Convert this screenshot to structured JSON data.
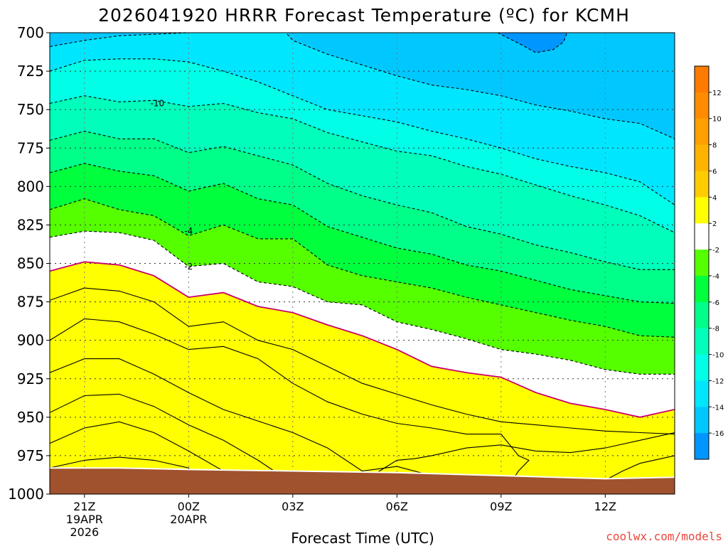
{
  "chart_data": {
    "type": "heatmap",
    "title": "2026041920 HRRR Forecast Temperature (ºC) for KCMH",
    "xlabel": "Forecast Time (UTC)",
    "ylabel": "",
    "yticks": [
      "700",
      "725",
      "750",
      "775",
      "800",
      "825",
      "850",
      "875",
      "900",
      "925",
      "950",
      "975",
      "1000"
    ],
    "ylim": [
      1000,
      700
    ],
    "xticks": [
      {
        "hour": 0,
        "lines": [
          "21Z",
          "19APR",
          "2026"
        ]
      },
      {
        "hour": 3,
        "lines": [
          "00Z",
          "20APR"
        ]
      },
      {
        "hour": 6,
        "lines": [
          "03Z"
        ]
      },
      {
        "hour": 9,
        "lines": [
          "06Z"
        ]
      },
      {
        "hour": 12,
        "lines": [
          "09Z"
        ]
      },
      {
        "hour": 15,
        "lines": [
          "12Z"
        ]
      }
    ],
    "xlim": [
      -1,
      17
    ],
    "grid": true,
    "contour_interval": 2,
    "contour_labels": [
      {
        "value": "-10",
        "hour": 2.1,
        "p": 746
      },
      {
        "value": "-4",
        "hour": 3.0,
        "p": 829
      },
      {
        "value": "-2",
        "hour": 3.0,
        "p": 852
      }
    ],
    "colorbar": {
      "levels": [
        "12",
        "10",
        "8",
        "6",
        "4",
        "2",
        "-2",
        "-4",
        "-6",
        "-8",
        "-10",
        "-12",
        "-14",
        "-16"
      ],
      "colors": [
        "#ff7a00",
        "#ff8c00",
        "#ff9f00",
        "#ffb300",
        "#ffcc00",
        "#ffff00",
        "#ffffff",
        "#55ff00",
        "#00ff3c",
        "#00ff88",
        "#00ffbb",
        "#00ffe6",
        "#00e6ff",
        "#00c8ff",
        "#0096ff"
      ]
    },
    "isotherms": [
      {
        "value": 6,
        "style": "solid",
        "points": [
          [
            -1,
            983
          ],
          [
            0,
            978
          ],
          [
            1,
            976
          ],
          [
            2,
            978
          ],
          [
            3,
            983
          ],
          [
            3.2,
            992
          ]
        ]
      },
      {
        "value": 4,
        "style": "solid",
        "points": [
          [
            -1,
            967
          ],
          [
            0,
            957
          ],
          [
            1,
            953
          ],
          [
            2,
            960
          ],
          [
            3,
            972
          ],
          [
            4,
            985
          ],
          [
            4.2,
            992
          ]
        ]
      },
      {
        "value": 2,
        "style": "solid",
        "points": [
          [
            -1,
            947
          ],
          [
            0,
            936
          ],
          [
            1,
            935
          ],
          [
            2,
            943
          ],
          [
            3,
            955
          ],
          [
            4,
            965
          ],
          [
            5,
            978
          ],
          [
            5.8,
            990
          ]
        ]
      },
      {
        "value": 0,
        "style": "solid",
        "points": [
          [
            -1,
            921
          ],
          [
            0,
            912
          ],
          [
            1,
            912
          ],
          [
            2,
            922
          ],
          [
            3,
            934
          ],
          [
            4,
            945
          ],
          [
            6,
            960
          ],
          [
            7,
            970
          ],
          [
            8,
            985
          ],
          [
            9,
            982
          ],
          [
            10,
            988
          ],
          [
            10.5,
            993
          ]
        ]
      },
      {
        "value": 0,
        "style": "solid",
        "points": [
          [
            8,
            995
          ],
          [
            8.5,
            985
          ],
          [
            9,
            978
          ],
          [
            9.5,
            977
          ],
          [
            10,
            975
          ],
          [
            11,
            970
          ],
          [
            12,
            968
          ],
          [
            13,
            972
          ],
          [
            14,
            973
          ],
          [
            15,
            970
          ],
          [
            16,
            965
          ],
          [
            17,
            960
          ]
        ]
      },
      {
        "value": 0,
        "style": "solid",
        "points": [
          [
            -1,
            900
          ],
          [
            0,
            886
          ],
          [
            1,
            888
          ],
          [
            2,
            896
          ],
          [
            3,
            906
          ],
          [
            4,
            904
          ],
          [
            5,
            912
          ],
          [
            6,
            928
          ],
          [
            7,
            940
          ],
          [
            8,
            948
          ],
          [
            9,
            954
          ],
          [
            10,
            957
          ],
          [
            11,
            961
          ],
          [
            12,
            961
          ],
          [
            12.5,
            975
          ],
          [
            12.8,
            978
          ],
          [
            12.5,
            985
          ],
          [
            12.3,
            992
          ]
        ]
      },
      {
        "value": 0,
        "style": "solid",
        "points": [
          [
            15,
            991
          ],
          [
            15.5,
            985
          ],
          [
            16,
            980
          ],
          [
            17,
            975
          ]
        ]
      },
      {
        "value": 0,
        "style": "solid",
        "points": [
          [
            -1,
            874
          ],
          [
            0,
            866
          ],
          [
            1,
            868
          ],
          [
            2,
            875
          ],
          [
            3,
            891
          ],
          [
            4,
            888
          ],
          [
            5,
            900
          ],
          [
            6,
            906
          ],
          [
            7,
            917
          ],
          [
            8,
            928
          ],
          [
            9,
            935
          ],
          [
            10,
            942
          ],
          [
            11,
            948
          ],
          [
            12,
            953
          ],
          [
            13,
            955
          ],
          [
            14,
            957
          ],
          [
            15,
            959
          ],
          [
            16,
            960
          ],
          [
            17,
            961
          ]
        ]
      },
      {
        "value": 0,
        "style": "magenta",
        "points": [
          [
            -1,
            855
          ],
          [
            0,
            849
          ],
          [
            1,
            851
          ],
          [
            2,
            858
          ],
          [
            3,
            872
          ],
          [
            4,
            869
          ],
          [
            5,
            878
          ],
          [
            6,
            882
          ],
          [
            7,
            890
          ],
          [
            8,
            897
          ],
          [
            9,
            906
          ],
          [
            10,
            917
          ],
          [
            11,
            921
          ],
          [
            12,
            924
          ],
          [
            13,
            934
          ],
          [
            14,
            941
          ],
          [
            15,
            945
          ],
          [
            16,
            950
          ],
          [
            17,
            945
          ]
        ]
      },
      {
        "value": -2,
        "style": "dashed",
        "points": [
          [
            -1,
            833
          ],
          [
            0,
            829
          ],
          [
            1,
            830
          ],
          [
            2,
            835
          ],
          [
            3,
            852
          ],
          [
            4,
            850
          ],
          [
            5,
            862
          ],
          [
            6,
            865
          ],
          [
            7,
            875
          ],
          [
            8,
            877
          ],
          [
            9,
            888
          ],
          [
            10,
            893
          ],
          [
            11,
            899
          ],
          [
            12,
            906
          ],
          [
            13,
            909
          ],
          [
            14,
            913
          ],
          [
            15,
            919
          ],
          [
            16,
            922
          ],
          [
            17,
            922
          ]
        ]
      },
      {
        "value": -4,
        "style": "dashed",
        "points": [
          [
            -1,
            815
          ],
          [
            0,
            808
          ],
          [
            1,
            815
          ],
          [
            2,
            819
          ],
          [
            3,
            832
          ],
          [
            4,
            825
          ],
          [
            5,
            834
          ],
          [
            6,
            834
          ],
          [
            7,
            851
          ],
          [
            8,
            858
          ],
          [
            9,
            862
          ],
          [
            10,
            866
          ],
          [
            11,
            872
          ],
          [
            12,
            877
          ],
          [
            13,
            882
          ],
          [
            14,
            887
          ],
          [
            15,
            891
          ],
          [
            16,
            897
          ],
          [
            17,
            898
          ]
        ]
      },
      {
        "value": -6,
        "style": "dashed",
        "points": [
          [
            -1,
            791
          ],
          [
            0,
            785
          ],
          [
            1,
            790
          ],
          [
            2,
            793
          ],
          [
            3,
            803
          ],
          [
            4,
            798
          ],
          [
            5,
            808
          ],
          [
            6,
            812
          ],
          [
            7,
            826
          ],
          [
            8,
            833
          ],
          [
            9,
            840
          ],
          [
            10,
            844
          ],
          [
            11,
            851
          ],
          [
            12,
            855
          ],
          [
            13,
            861
          ],
          [
            14,
            867
          ],
          [
            15,
            871
          ],
          [
            16,
            875
          ],
          [
            17,
            876
          ]
        ]
      },
      {
        "value": -8,
        "style": "dashed",
        "points": [
          [
            -1,
            770
          ],
          [
            0,
            764
          ],
          [
            1,
            769
          ],
          [
            2,
            769
          ],
          [
            3,
            778
          ],
          [
            4,
            774
          ],
          [
            5,
            780
          ],
          [
            6,
            786
          ],
          [
            7,
            798
          ],
          [
            8,
            806
          ],
          [
            9,
            812
          ],
          [
            10,
            817
          ],
          [
            11,
            826
          ],
          [
            12,
            831
          ],
          [
            13,
            838
          ],
          [
            14,
            843
          ],
          [
            15,
            849
          ],
          [
            16,
            854
          ],
          [
            17,
            854
          ]
        ]
      },
      {
        "value": -10,
        "style": "dashed",
        "points": [
          [
            -1,
            746
          ],
          [
            0,
            741
          ],
          [
            1,
            745
          ],
          [
            2,
            744
          ],
          [
            3,
            748
          ],
          [
            4,
            746
          ],
          [
            5,
            752
          ],
          [
            6,
            756
          ],
          [
            7,
            765
          ],
          [
            8,
            771
          ],
          [
            9,
            777
          ],
          [
            10,
            780
          ],
          [
            11,
            787
          ],
          [
            12,
            792
          ],
          [
            13,
            799
          ],
          [
            14,
            806
          ],
          [
            15,
            812
          ],
          [
            16,
            819
          ],
          [
            17,
            830
          ]
        ]
      },
      {
        "value": -12,
        "style": "dashed",
        "points": [
          [
            -1,
            725
          ],
          [
            0,
            718
          ],
          [
            1,
            717
          ],
          [
            2,
            717
          ],
          [
            3,
            719
          ],
          [
            4,
            725
          ],
          [
            5,
            732
          ],
          [
            6,
            741
          ],
          [
            7,
            750
          ],
          [
            8,
            754
          ],
          [
            9,
            758
          ],
          [
            10,
            764
          ],
          [
            11,
            769
          ],
          [
            12,
            775
          ],
          [
            13,
            782
          ],
          [
            14,
            787
          ],
          [
            15,
            791
          ],
          [
            16,
            797
          ],
          [
            17,
            812
          ]
        ]
      },
      {
        "value": -14,
        "style": "dashed",
        "points": [
          [
            -1,
            709
          ],
          [
            0,
            705
          ],
          [
            1,
            702
          ],
          [
            2,
            701
          ],
          [
            3,
            700
          ],
          [
            4,
            700
          ],
          [
            5,
            700
          ],
          [
            5.8,
            700
          ],
          [
            6,
            705
          ],
          [
            7,
            714
          ],
          [
            8,
            721
          ],
          [
            9,
            728
          ],
          [
            10,
            734
          ],
          [
            11,
            737
          ],
          [
            12,
            741
          ],
          [
            13,
            747
          ],
          [
            14,
            751
          ],
          [
            15,
            756
          ],
          [
            16,
            759
          ],
          [
            17,
            769
          ]
        ]
      },
      {
        "value": -16,
        "style": "dashed",
        "points": [
          [
            11.9,
            700
          ],
          [
            12.6,
            708
          ],
          [
            13,
            713
          ],
          [
            13.5,
            711
          ],
          [
            13.8,
            706
          ],
          [
            13.9,
            700
          ]
        ]
      }
    ]
  },
  "credit": "coolwx.com/models"
}
